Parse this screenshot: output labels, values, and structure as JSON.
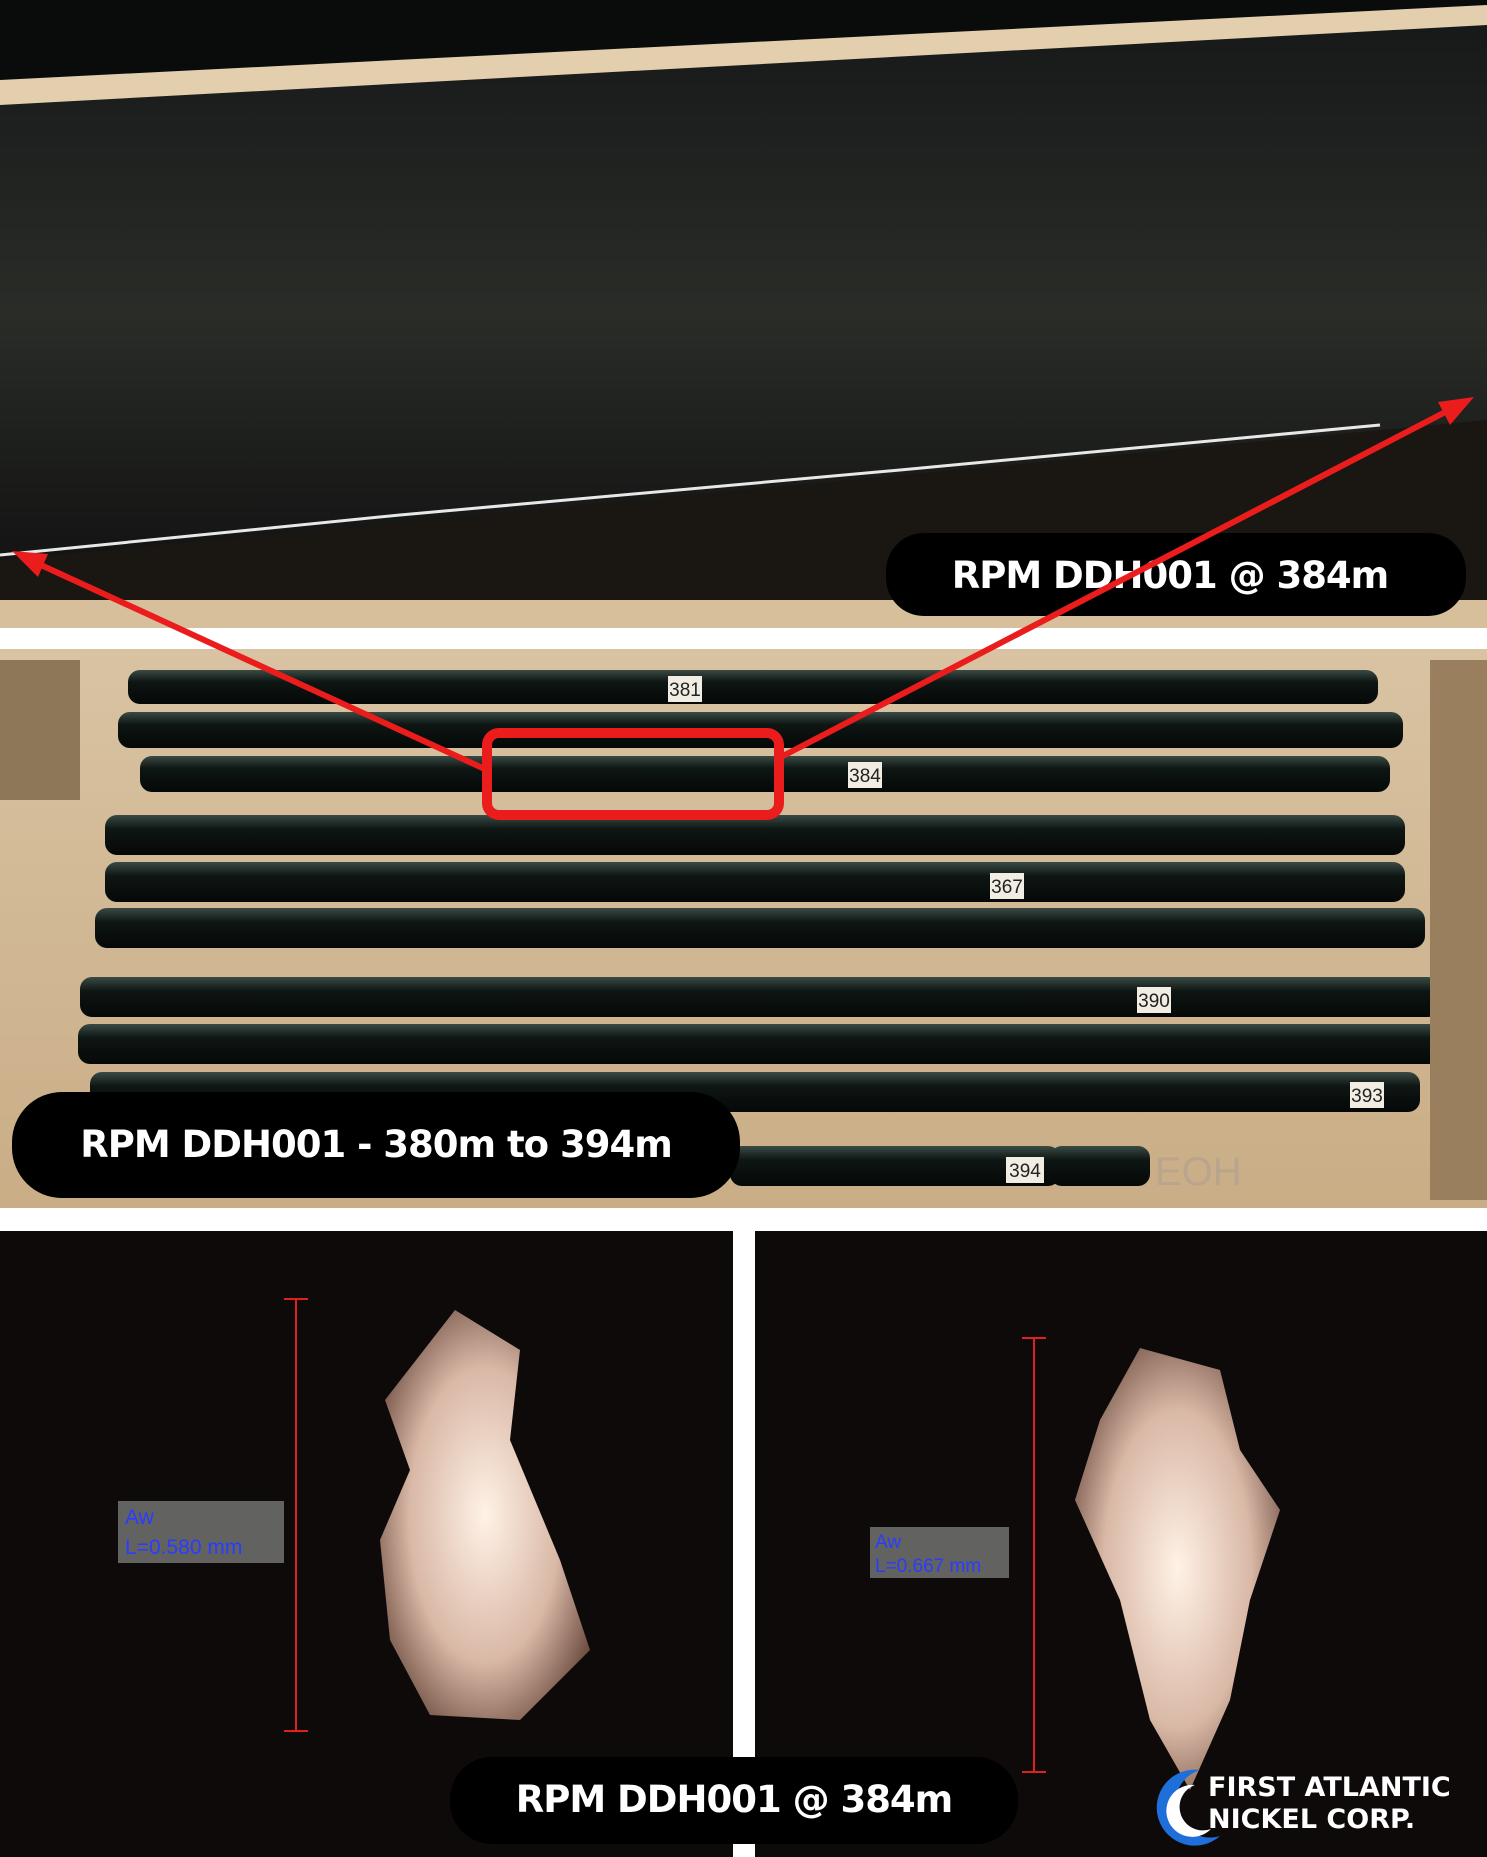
{
  "top_photo": {
    "label": "RPM DDH001 @ 384m"
  },
  "core_box_photo": {
    "label": "RPM DDH001  - 380m  to 394m",
    "depth_tags": [
      "381",
      "384",
      "367",
      "390",
      "393",
      "394"
    ],
    "end_mark": "EOH"
  },
  "micrographs": [
    {
      "mineral": "Aw",
      "measurement": "L=0.580 mm"
    },
    {
      "mineral": "Aw",
      "measurement": "L=0.667 mm"
    }
  ],
  "footer": {
    "label": "RPM DDH001 @ 384m"
  },
  "logo": {
    "line1": "FIRST ATLANTIC",
    "line2": "NICKEL CORP."
  }
}
